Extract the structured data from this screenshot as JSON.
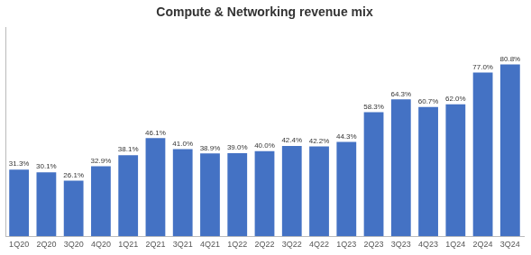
{
  "chart_data": {
    "type": "bar",
    "title": "Compute & Networking revenue mix",
    "categories": [
      "1Q20",
      "2Q20",
      "3Q20",
      "4Q20",
      "1Q21",
      "2Q21",
      "3Q21",
      "4Q21",
      "1Q22",
      "2Q22",
      "3Q22",
      "4Q22",
      "1Q23",
      "2Q23",
      "3Q23",
      "4Q23",
      "1Q24",
      "2Q24",
      "3Q24"
    ],
    "values": [
      31.3,
      30.1,
      26.1,
      32.9,
      38.1,
      46.1,
      41.0,
      38.9,
      39.0,
      40.0,
      42.4,
      42.2,
      44.3,
      58.3,
      64.3,
      60.7,
      62.0,
      77.0,
      80.8
    ],
    "value_labels": [
      "31.3%",
      "30.1%",
      "26.1%",
      "32.9%",
      "38.1%",
      "46.1%",
      "41.0%",
      "38.9%",
      "39.0%",
      "40.0%",
      "42.4%",
      "42.2%",
      "44.3%",
      "58.3%",
      "64.3%",
      "60.7%",
      "62.0%",
      "77.0%",
      "80.8%"
    ],
    "color": "#4472c4",
    "ylim": [
      0,
      98
    ],
    "grid": false,
    "data_labels": true,
    "tick_labels": "x"
  }
}
